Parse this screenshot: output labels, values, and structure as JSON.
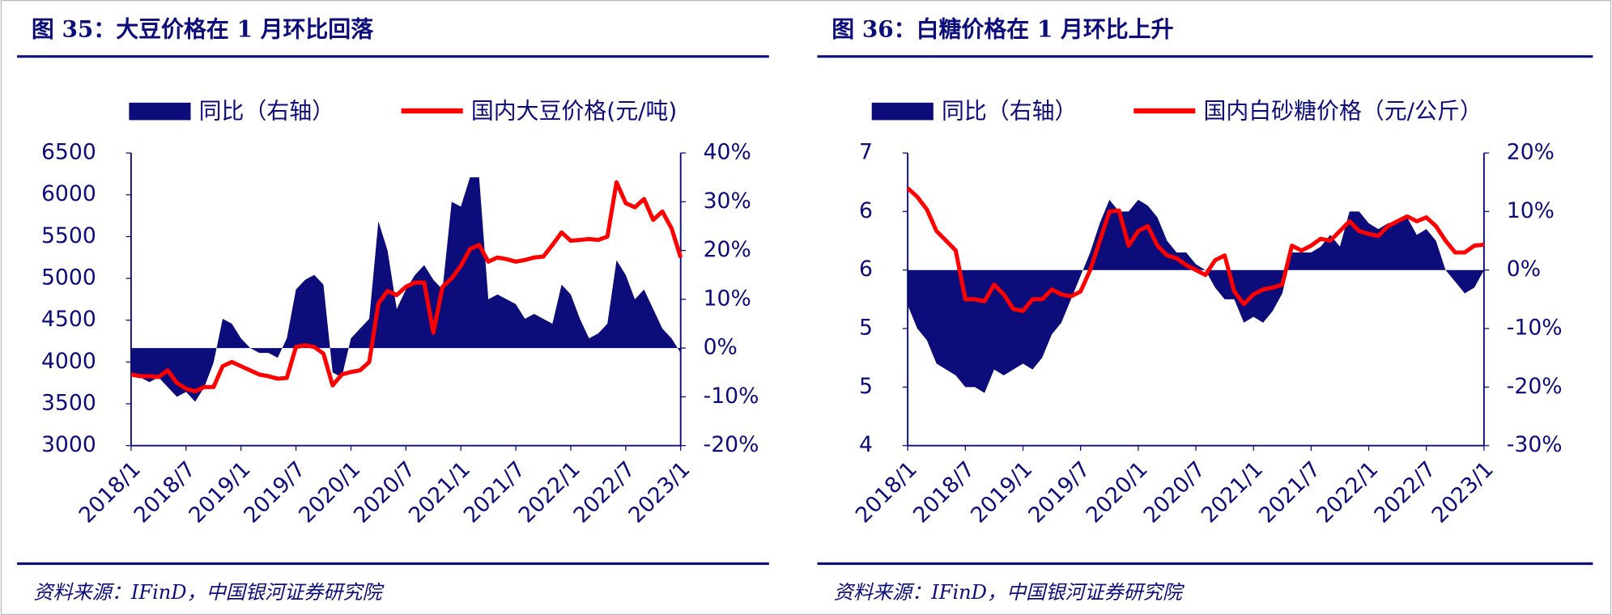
{
  "chart_data": [
    {
      "type": "combo",
      "title": "图 35：大豆价格在 1 月环比回落",
      "source": "资料来源：IFinD，中国银河证券研究院",
      "categories": [
        "2018/1",
        null,
        null,
        null,
        null,
        null,
        "2018/7",
        null,
        null,
        null,
        null,
        null,
        "2019/1",
        null,
        null,
        null,
        null,
        null,
        "2019/7",
        null,
        null,
        null,
        null,
        null,
        "2020/1",
        null,
        null,
        null,
        null,
        null,
        "2020/7",
        null,
        null,
        null,
        null,
        null,
        "2021/1",
        null,
        null,
        null,
        null,
        null,
        "2021/7",
        null,
        null,
        null,
        null,
        null,
        "2022/1",
        null,
        null,
        null,
        null,
        null,
        "2022/7",
        null,
        null,
        null,
        null,
        null,
        "2023/1"
      ],
      "series": [
        {
          "name": "同比（右轴）",
          "type": "area",
          "axis": "y2",
          "color": "#0c0c7a",
          "values": [
            -5,
            -6,
            -7,
            -6,
            -8,
            -10,
            -9,
            -11,
            -8,
            -3,
            6,
            5,
            2,
            0,
            -1,
            -1,
            -2,
            2,
            12,
            14,
            15,
            13,
            -5,
            -6,
            2,
            4,
            6,
            26,
            20,
            8,
            12,
            15,
            17,
            14,
            12,
            30,
            29,
            35,
            35,
            10,
            11,
            10,
            9,
            6,
            7,
            6,
            5,
            13,
            11,
            6,
            2,
            3,
            5,
            18,
            15,
            10,
            12,
            8,
            4,
            2,
            -1
          ]
        },
        {
          "name": "国内大豆价格(元/吨)",
          "type": "line",
          "color": "#ff0000",
          "values": [
            3850,
            3830,
            3830,
            3820,
            3900,
            3750,
            3680,
            3650,
            3700,
            3700,
            3950,
            4000,
            3950,
            3900,
            3850,
            3830,
            3800,
            3810,
            4180,
            4200,
            4180,
            4100,
            3720,
            3850,
            3880,
            3900,
            4000,
            4700,
            4850,
            4800,
            4900,
            4950,
            4950,
            4350,
            4900,
            5000,
            5150,
            5350,
            5400,
            5200,
            5250,
            5230,
            5200,
            5220,
            5250,
            5260,
            5400,
            5550,
            5450,
            5460,
            5470,
            5460,
            5500,
            6150,
            5900,
            5850,
            5950,
            5700,
            5800,
            5600,
            5250
          ]
        }
      ],
      "ylim": [
        3000,
        6500
      ],
      "yticks": [
        3000,
        3500,
        4000,
        4500,
        5000,
        5500,
        6000,
        6500
      ],
      "y2lim": [
        -20,
        40
      ],
      "y2ticks": [
        {
          "value": -20,
          "label": "-20%"
        },
        {
          "value": -10,
          "label": "-10%"
        },
        {
          "value": 0,
          "label": "0%"
        },
        {
          "value": 10,
          "label": "10%"
        },
        {
          "value": 20,
          "label": "20%"
        },
        {
          "value": 30,
          "label": "30%"
        },
        {
          "value": 40,
          "label": "40%"
        }
      ]
    },
    {
      "type": "combo",
      "title": "图 36：白糖价格在 1 月环比上升",
      "source": "资料来源：IFinD，中国银河证券研究院",
      "categories": [
        "2018/1",
        null,
        null,
        null,
        null,
        null,
        "2018/7",
        null,
        null,
        null,
        null,
        null,
        "2019/1",
        null,
        null,
        null,
        null,
        null,
        "2019/7",
        null,
        null,
        null,
        null,
        null,
        "2020/1",
        null,
        null,
        null,
        null,
        null,
        "2020/7",
        null,
        null,
        null,
        null,
        null,
        "2021/1",
        null,
        null,
        null,
        null,
        null,
        "2021/7",
        null,
        null,
        null,
        null,
        null,
        "2022/1",
        null,
        null,
        null,
        null,
        null,
        "2022/7",
        null,
        null,
        null,
        null,
        null,
        "2023/1"
      ],
      "series": [
        {
          "name": "同比（右轴）",
          "type": "area",
          "axis": "y2",
          "color": "#0c0c7a",
          "values": [
            -6,
            -10,
            -12,
            -16,
            -17,
            -18,
            -20,
            -20,
            -21,
            -17,
            -18,
            -17,
            -16,
            -17,
            -15,
            -11,
            -9,
            -5,
            -1,
            3,
            8,
            12,
            10,
            10,
            12,
            11,
            9,
            5,
            3,
            3,
            1,
            0,
            -3,
            -5,
            -5,
            -9,
            -8,
            -9,
            -7,
            -4,
            3,
            3,
            3,
            4,
            6,
            4,
            10,
            10,
            8,
            7,
            8,
            8,
            9,
            6,
            7,
            5,
            0,
            -2,
            -4,
            -3,
            0
          ]
        },
        {
          "name": "国内白砂糖价格（元/公斤）",
          "type": "line",
          "color": "#ff0000",
          "values": [
            6.64,
            6.55,
            6.42,
            6.2,
            6.1,
            6.0,
            5.5,
            5.5,
            5.48,
            5.65,
            5.55,
            5.4,
            5.38,
            5.5,
            5.5,
            5.6,
            5.55,
            5.53,
            5.58,
            5.8,
            6.1,
            6.4,
            6.41,
            6.05,
            6.2,
            6.25,
            6.05,
            5.95,
            5.92,
            5.85,
            5.8,
            5.75,
            5.9,
            5.95,
            5.58,
            5.45,
            5.55,
            5.6,
            5.62,
            5.65,
            6.05,
            6.0,
            6.05,
            6.12,
            6.1,
            6.2,
            6.3,
            6.2,
            6.17,
            6.15,
            6.25,
            6.3,
            6.35,
            6.3,
            6.34,
            6.25,
            6.1,
            5.98,
            5.98,
            6.05,
            6.06
          ]
        }
      ],
      "ylim": [
        4,
        7
      ],
      "yticks": [
        4,
        {
          "value": 4.6,
          "label": "5"
        },
        {
          "value": 5.2,
          "label": "5"
        },
        {
          "value": 5.8,
          "label": "6"
        },
        {
          "value": 6.4,
          "label": "6"
        },
        7
      ],
      "y2lim": [
        -30,
        20
      ],
      "y2ticks": [
        {
          "value": -30,
          "label": "-30%"
        },
        {
          "value": -20,
          "label": "-20%"
        },
        {
          "value": -10,
          "label": "-10%"
        },
        {
          "value": 0,
          "label": "0%"
        },
        {
          "value": 10,
          "label": "10%"
        },
        {
          "value": 20,
          "label": "20%"
        }
      ]
    }
  ]
}
